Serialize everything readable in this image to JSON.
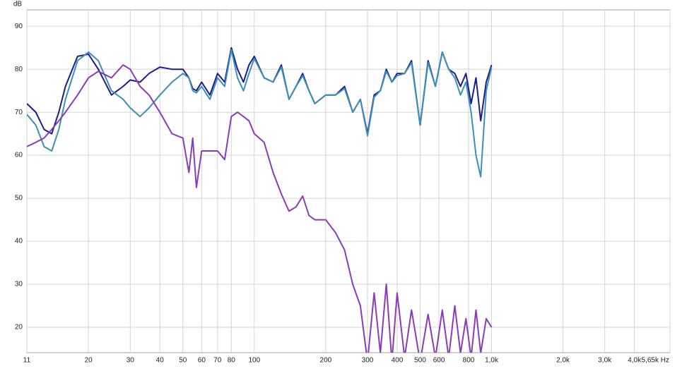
{
  "chart_data": {
    "type": "line",
    "ylabel": "dB",
    "xscale": "log",
    "grid": true,
    "x": [
      11,
      12,
      13,
      14,
      15,
      16,
      18,
      20,
      22,
      25,
      28,
      30,
      33,
      36,
      40,
      45,
      50,
      53,
      55,
      57,
      60,
      65,
      70,
      75,
      80,
      85,
      90,
      95,
      100,
      110,
      120,
      130,
      140,
      150,
      160,
      170,
      180,
      200,
      220,
      240,
      260,
      280,
      300,
      320,
      340,
      360,
      380,
      400,
      430,
      460,
      500,
      540,
      580,
      620,
      660,
      700,
      740,
      780,
      820,
      860,
      900,
      950,
      1000
    ],
    "series": [
      {
        "color": "#1c1c8f",
        "values": [
          72,
          70,
          66,
          65,
          70,
          76,
          83,
          83.5,
          80,
          74,
          76,
          77.5,
          77,
          79,
          80.5,
          80,
          80,
          78,
          75.5,
          75,
          77,
          74,
          79,
          77,
          85,
          80,
          77,
          81,
          83,
          78,
          77,
          81,
          73,
          76,
          79,
          75,
          72,
          74,
          74,
          76,
          70,
          73,
          65,
          74,
          75,
          80,
          77,
          79,
          79,
          82,
          67,
          82,
          76,
          84,
          80,
          79,
          76,
          79,
          72,
          78,
          68,
          77,
          81
        ]
      },
      {
        "color": "#3b90b6",
        "values": [
          69.5,
          67,
          62,
          61,
          66,
          73,
          82,
          84,
          82,
          75,
          73,
          71,
          69,
          71,
          74,
          77,
          79,
          78,
          75,
          74.5,
          76,
          73,
          78,
          76,
          84.5,
          78,
          75,
          79,
          82.5,
          78,
          77,
          80.5,
          73,
          76,
          78.5,
          75,
          72,
          74,
          74,
          75.5,
          70,
          73,
          64.5,
          73.5,
          75,
          79.5,
          77,
          78.5,
          79,
          81.5,
          67,
          81.5,
          76,
          84,
          80,
          78,
          74,
          77,
          70,
          60,
          55,
          75,
          80.5
        ]
      },
      {
        "color": "#8a3cb8",
        "values": [
          62,
          63,
          64,
          66,
          68,
          70,
          74,
          78,
          79.5,
          78,
          81,
          80,
          76,
          74,
          70,
          65,
          64,
          56,
          64,
          52.5,
          61,
          61,
          61,
          59,
          69,
          70,
          69,
          68,
          65,
          63,
          56,
          51,
          47,
          48,
          50.5,
          46,
          45,
          45,
          42,
          38,
          30,
          25,
          12,
          28,
          14,
          30,
          12,
          28,
          13,
          24,
          12,
          23,
          13,
          24,
          13,
          25,
          14,
          22,
          13,
          24,
          14,
          22,
          20
        ]
      }
    ],
    "xlim": [
      11,
      5650
    ],
    "xticks": [
      11,
      20,
      30,
      40,
      50,
      60,
      70,
      80,
      100,
      200,
      300,
      400,
      500,
      600,
      800,
      {
        "value": 1000,
        "label": "1,0k"
      },
      {
        "value": 2000,
        "label": "2,0k"
      },
      {
        "value": 3000,
        "label": "3,0k"
      },
      {
        "value": 4000,
        "label": "4,0k"
      },
      {
        "value": 5650,
        "label": "5,65k Hz"
      }
    ],
    "ylim": [
      14.1,
      93.8
    ],
    "yticks": [
      20,
      30,
      40,
      50,
      60,
      70,
      80,
      90
    ]
  }
}
